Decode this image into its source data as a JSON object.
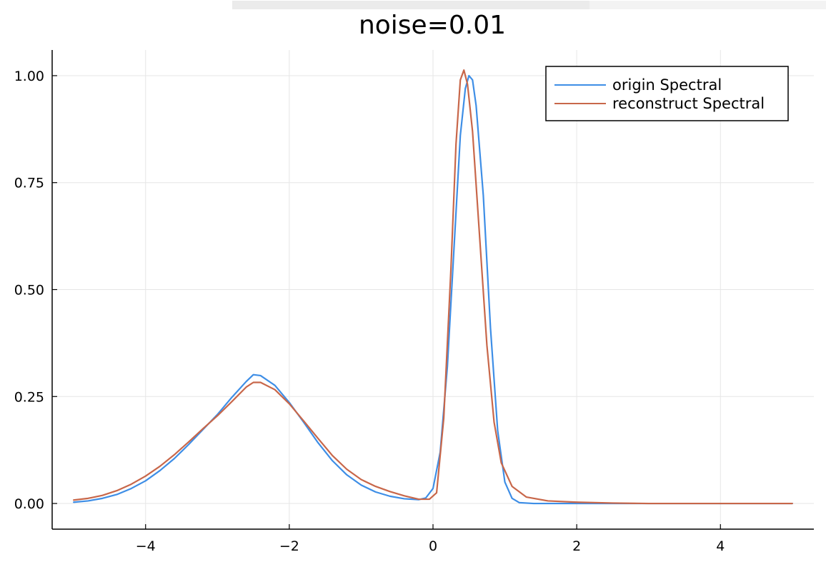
{
  "chart_data": {
    "type": "line",
    "title": "noise=0.01",
    "xlabel": "",
    "ylabel": "",
    "xlim": [
      -5.3,
      5.3
    ],
    "ylim": [
      -0.06,
      1.06
    ],
    "x_ticks": [
      -4,
      -2,
      0,
      2,
      4
    ],
    "x_tick_labels": [
      "−4",
      "−2",
      "0",
      "2",
      "4"
    ],
    "y_ticks": [
      0,
      0.25,
      0.5,
      0.75,
      1.0
    ],
    "y_tick_labels": [
      "0.00",
      "0.25",
      "0.50",
      "0.75",
      "1.00"
    ],
    "grid": true,
    "legend": "top-right",
    "series": [
      {
        "name": "origin Spectral",
        "color": "#3e8ee6",
        "points": [
          [
            -5.0,
            0.003
          ],
          [
            -4.8,
            0.006
          ],
          [
            -4.6,
            0.012
          ],
          [
            -4.4,
            0.021
          ],
          [
            -4.2,
            0.035
          ],
          [
            -4.0,
            0.053
          ],
          [
            -3.8,
            0.077
          ],
          [
            -3.6,
            0.105
          ],
          [
            -3.4,
            0.138
          ],
          [
            -3.2,
            0.173
          ],
          [
            -3.0,
            0.208
          ],
          [
            -2.8,
            0.248
          ],
          [
            -2.6,
            0.285
          ],
          [
            -2.5,
            0.301
          ],
          [
            -2.4,
            0.299
          ],
          [
            -2.2,
            0.276
          ],
          [
            -2.0,
            0.236
          ],
          [
            -1.8,
            0.19
          ],
          [
            -1.6,
            0.142
          ],
          [
            -1.4,
            0.1
          ],
          [
            -1.2,
            0.067
          ],
          [
            -1.0,
            0.043
          ],
          [
            -0.8,
            0.027
          ],
          [
            -0.6,
            0.017
          ],
          [
            -0.4,
            0.011
          ],
          [
            -0.2,
            0.009
          ],
          [
            -0.1,
            0.013
          ],
          [
            0.0,
            0.035
          ],
          [
            0.1,
            0.12
          ],
          [
            0.2,
            0.32
          ],
          [
            0.3,
            0.62
          ],
          [
            0.38,
            0.86
          ],
          [
            0.45,
            0.97
          ],
          [
            0.5,
            1.0
          ],
          [
            0.55,
            0.99
          ],
          [
            0.6,
            0.93
          ],
          [
            0.7,
            0.72
          ],
          [
            0.8,
            0.41
          ],
          [
            0.9,
            0.17
          ],
          [
            1.0,
            0.05
          ],
          [
            1.1,
            0.012
          ],
          [
            1.2,
            0.002
          ],
          [
            1.4,
            0.0
          ],
          [
            2.0,
            0.0
          ],
          [
            3.0,
            0.0
          ],
          [
            4.0,
            0.0
          ],
          [
            5.0,
            0.0
          ]
        ]
      },
      {
        "name": "reconstruct Spectral",
        "color": "#c8674a",
        "points": [
          [
            -5.0,
            0.008
          ],
          [
            -4.8,
            0.012
          ],
          [
            -4.6,
            0.019
          ],
          [
            -4.4,
            0.03
          ],
          [
            -4.2,
            0.045
          ],
          [
            -4.0,
            0.064
          ],
          [
            -3.8,
            0.087
          ],
          [
            -3.6,
            0.114
          ],
          [
            -3.4,
            0.144
          ],
          [
            -3.2,
            0.175
          ],
          [
            -3.0,
            0.205
          ],
          [
            -2.8,
            0.238
          ],
          [
            -2.6,
            0.272
          ],
          [
            -2.5,
            0.283
          ],
          [
            -2.4,
            0.283
          ],
          [
            -2.2,
            0.266
          ],
          [
            -2.0,
            0.233
          ],
          [
            -1.8,
            0.193
          ],
          [
            -1.6,
            0.152
          ],
          [
            -1.4,
            0.112
          ],
          [
            -1.2,
            0.08
          ],
          [
            -1.0,
            0.056
          ],
          [
            -0.8,
            0.04
          ],
          [
            -0.6,
            0.028
          ],
          [
            -0.4,
            0.018
          ],
          [
            -0.2,
            0.01
          ],
          [
            -0.05,
            0.01
          ],
          [
            0.05,
            0.025
          ],
          [
            0.15,
            0.2
          ],
          [
            0.25,
            0.55
          ],
          [
            0.32,
            0.84
          ],
          [
            0.38,
            0.99
          ],
          [
            0.43,
            1.013
          ],
          [
            0.48,
            0.98
          ],
          [
            0.55,
            0.87
          ],
          [
            0.65,
            0.62
          ],
          [
            0.75,
            0.37
          ],
          [
            0.85,
            0.19
          ],
          [
            0.95,
            0.095
          ],
          [
            1.1,
            0.04
          ],
          [
            1.3,
            0.015
          ],
          [
            1.6,
            0.006
          ],
          [
            2.0,
            0.003
          ],
          [
            2.5,
            0.001
          ],
          [
            3.0,
            0.0
          ],
          [
            4.0,
            0.0
          ],
          [
            5.0,
            0.0
          ]
        ]
      }
    ]
  }
}
